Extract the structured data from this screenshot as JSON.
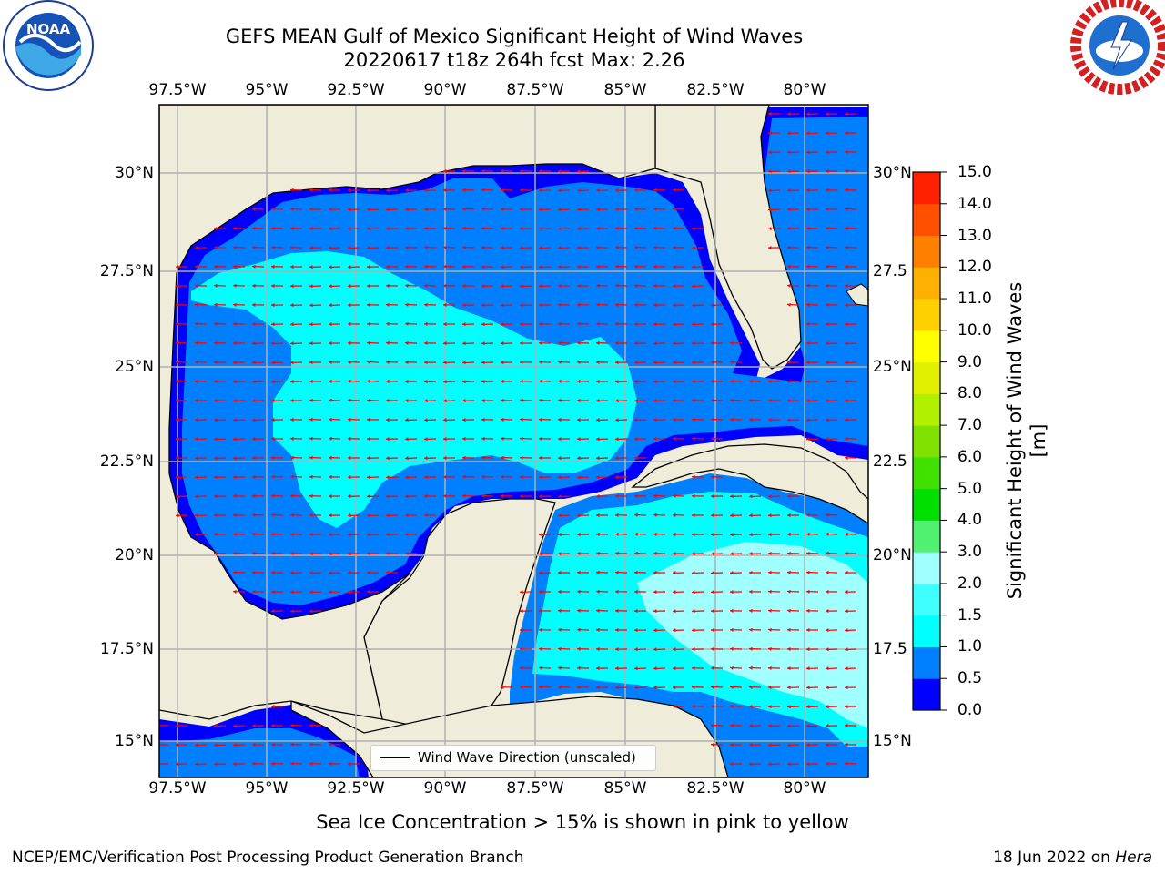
{
  "title_line1": "GEFS MEAN Gulf of Mexico Significant Height of Wind Waves",
  "title_line2": "20220617 t18z 264h fcst   Max: 2.26",
  "lon_ticks": [
    "97.5°W",
    "95°W",
    "92.5°W",
    "90°W",
    "87.5°W",
    "85°W",
    "82.5°W",
    "80°W"
  ],
  "lat_ticks_left": [
    "30°N",
    "27.5°N",
    "25°N",
    "22.5°N",
    "20°N",
    "17.5°N",
    "15°N"
  ],
  "lat_ticks_right": [
    "30°N",
    "27.5",
    "25°N",
    "22.5",
    "20°N",
    "17.5",
    "15°N"
  ],
  "colorbar": {
    "label": "Significant Height of Wind Waves [m]",
    "ticks": [
      "0.0",
      "0.5",
      "1.0",
      "1.5",
      "2.0",
      "3.0",
      "4.0",
      "5.0",
      "6.0",
      "7.0",
      "8.0",
      "9.0",
      "10.0",
      "11.0",
      "12.0",
      "13.0",
      "14.0",
      "15.0"
    ],
    "colors": [
      "#0000ff",
      "#0080ff",
      "#00ffff",
      "#40ffff",
      "#a0ffff",
      "#50f070",
      "#00e000",
      "#40e000",
      "#80e000",
      "#b0f000",
      "#e0f000",
      "#ffff00",
      "#ffd000",
      "#ffb000",
      "#ff8000",
      "#ff5000",
      "#ff2000"
    ]
  },
  "legend_label": "Wind Wave Direction (unscaled)",
  "note": "Sea Ice Concentration > 15% is shown in pink to yellow",
  "footer_left": "NCEP/EMC/Verification Post Processing Product Generation Branch",
  "footer_right_prefix": "18 Jun 2022 on ",
  "footer_right_host": "Hera",
  "colors": {
    "land": "#efedda",
    "ocean_low": "#0000ff",
    "ocean_mid": "#0080ff",
    "ocean_cyan": "#00ffff",
    "ocean_light": "#a0ffff",
    "arrow": "#ff0000"
  },
  "logos": {
    "left": "NOAA",
    "right_icon": "nws-logo-icon"
  }
}
